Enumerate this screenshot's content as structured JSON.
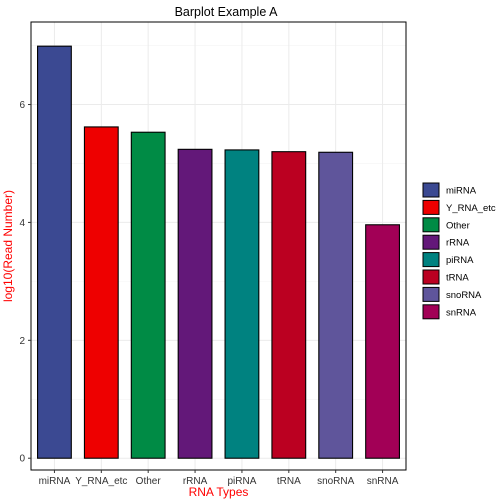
{
  "chart_data": {
    "type": "bar",
    "title": "Barplot Example A",
    "xlabel": "RNA Types",
    "ylabel": "log10(Read Number)",
    "label_color": "#ff0000",
    "categories": [
      "miRNA",
      "Y_RNA_etc",
      "Other",
      "rRNA",
      "piRNA",
      "tRNA",
      "snoRNA",
      "snRNA"
    ],
    "values": [
      6.99,
      5.62,
      5.53,
      5.24,
      5.23,
      5.2,
      5.19,
      3.96
    ],
    "colors": [
      "#3b4992",
      "#ee0000",
      "#008b45",
      "#631879",
      "#008280",
      "#bb0021",
      "#5f559b",
      "#a20056"
    ],
    "ylim": [
      -0.2,
      7.4
    ],
    "yticks": [
      0,
      2,
      4,
      6
    ],
    "grid": true,
    "legend": {
      "position": "right",
      "entries": [
        "miRNA",
        "Y_RNA_etc",
        "Other",
        "rRNA",
        "piRNA",
        "tRNA",
        "snoRNA",
        "snRNA"
      ]
    }
  }
}
